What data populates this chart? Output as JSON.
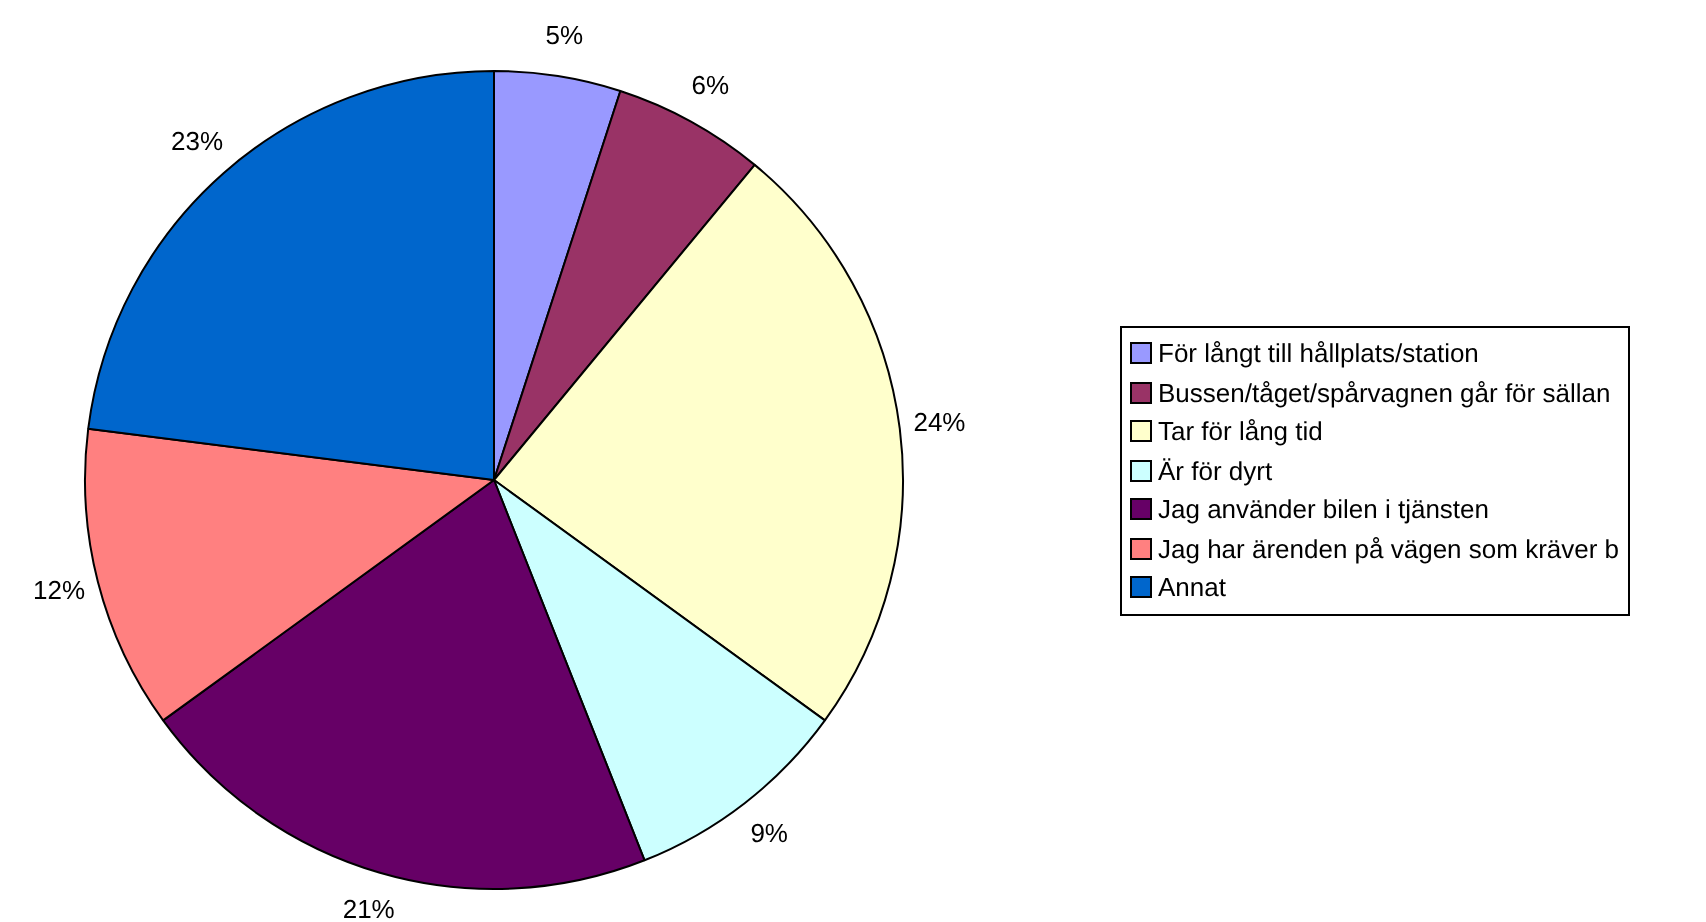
{
  "chart_data": {
    "type": "pie",
    "categories": [
      "För långt till hållplats/station",
      "Bussen/tåget/spårvagnen går för sällan",
      "Tar för lång tid",
      "Är för dyrt",
      "Jag använder bilen i tjänsten",
      "Jag har ärenden på vägen som kräver b",
      "Annat"
    ],
    "values": [
      5,
      6,
      24,
      9,
      21,
      12,
      23
    ],
    "colors": [
      "#9999ff",
      "#993366",
      "#ffffcc",
      "#ccffff",
      "#660066",
      "#ff8080",
      "#0066cc"
    ],
    "value_labels": [
      "5%",
      "6%",
      "24%",
      "9%",
      "21%",
      "12%",
      "23%"
    ],
    "legend": "right"
  }
}
